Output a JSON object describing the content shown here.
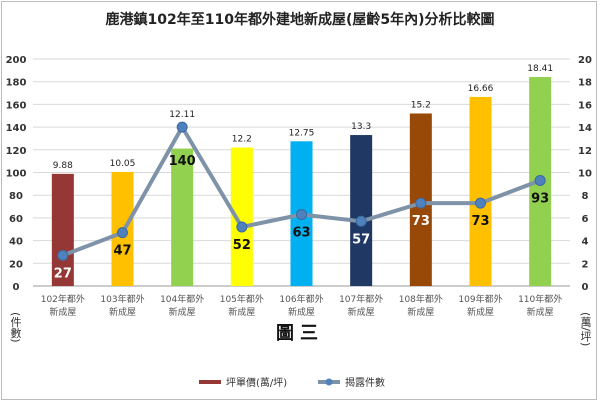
{
  "chart_data": {
    "type": "bar+line",
    "title": "鹿港鎮102年至110年都外建地新成屋(屋齡5年內)分析比較圖",
    "subtitle": "圖三",
    "categories": [
      [
        "102年都外",
        "新成屋"
      ],
      [
        "103年都外",
        "新成屋"
      ],
      [
        "104年都外",
        "新成屋"
      ],
      [
        "105年都外",
        "新成屋"
      ],
      [
        "106年都外",
        "新成屋"
      ],
      [
        "107年都外",
        "新成屋"
      ],
      [
        "108年都外",
        "新成屋"
      ],
      [
        "109年都外",
        "新成屋"
      ],
      [
        "110年都外",
        "新成屋"
      ]
    ],
    "left_axis": {
      "label": "(件數)",
      "ylim": [
        0,
        200
      ],
      "ticks": [
        0,
        20,
        40,
        60,
        80,
        100,
        120,
        140,
        160,
        180,
        200
      ]
    },
    "right_axis": {
      "label": "(萬/坪)",
      "ylim": [
        0,
        20
      ],
      "ticks": [
        0,
        2,
        4,
        6,
        8,
        10,
        12,
        14,
        16,
        18,
        20
      ]
    },
    "grid": true,
    "legend_position": "bottom",
    "series": [
      {
        "name": "坪單價(萬/坪)",
        "type": "bar",
        "axis": "right",
        "values": [
          9.88,
          10.05,
          12.11,
          12.2,
          12.75,
          13.3,
          15.2,
          16.66,
          18.41
        ],
        "labels": [
          "9.88",
          "10.05",
          "12.11",
          "12.2",
          "12.75",
          "13.3",
          "15.2",
          "16.66",
          "18.41"
        ],
        "colors": [
          "#953735",
          "#ffc000",
          "#92d050",
          "#ffff00",
          "#00b0f0",
          "#1f3864",
          "#984807",
          "#ffc000",
          "#92d050"
        ]
      },
      {
        "name": "揭露件數",
        "type": "line",
        "axis": "left",
        "values": [
          27,
          47,
          140,
          52,
          63,
          57,
          73,
          73,
          93
        ],
        "line_color": "#7f93a8",
        "marker_color": "#4f81bd"
      }
    ]
  }
}
